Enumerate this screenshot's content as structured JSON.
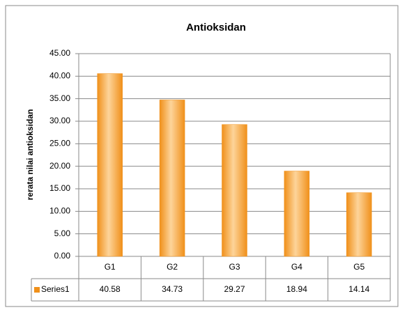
{
  "chart_data": {
    "type": "bar",
    "title": "Antioksidan",
    "y_label": "rerata nilai antioksidan",
    "categories": [
      "G1",
      "G2",
      "G3",
      "G4",
      "G5"
    ],
    "series": [
      {
        "name": "Series1",
        "color": "#f0901a",
        "values": [
          40.58,
          34.73,
          29.27,
          18.94,
          14.14
        ]
      }
    ],
    "ylim": [
      0,
      45
    ],
    "yticks": [
      {
        "value": 0,
        "label": "0.00"
      },
      {
        "value": 5,
        "label": "5.00"
      },
      {
        "value": 10,
        "label": "10.00"
      },
      {
        "value": 15,
        "label": "15.00"
      },
      {
        "value": 20,
        "label": "20.00"
      },
      {
        "value": 25,
        "label": "25.00"
      },
      {
        "value": 30,
        "label": "30.00"
      },
      {
        "value": 35,
        "label": "35.00"
      },
      {
        "value": 40,
        "label": "40.00"
      },
      {
        "value": 45,
        "label": "45.00"
      }
    ],
    "grid": true
  }
}
